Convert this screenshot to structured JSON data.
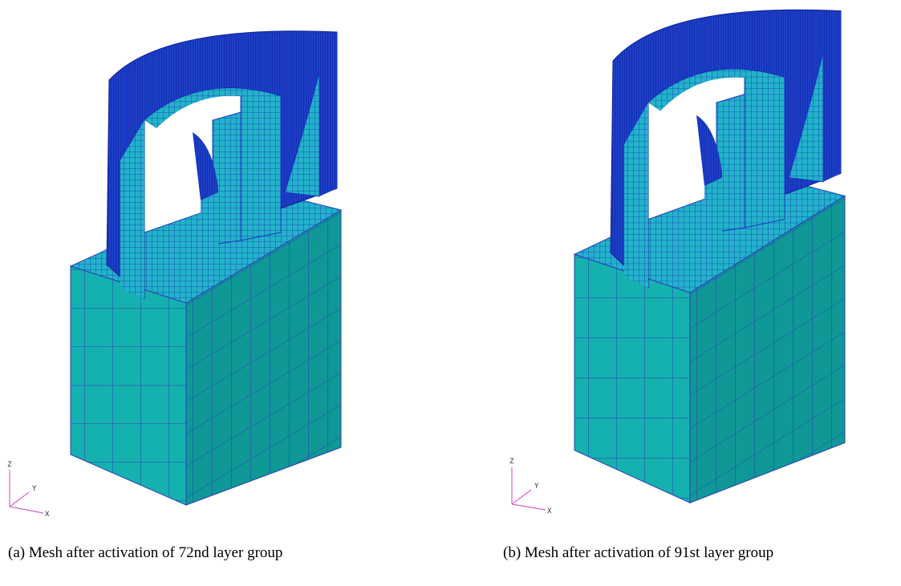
{
  "panels": [
    {
      "caption": "(a) Mesh after activation of 72nd layer group",
      "axes": {
        "z": "Z",
        "y": "Y",
        "x": "X"
      }
    },
    {
      "caption": "(b) Mesh after activation of 91st layer group",
      "axes": {
        "z": "Z",
        "y": "Y",
        "x": "X"
      }
    }
  ]
}
